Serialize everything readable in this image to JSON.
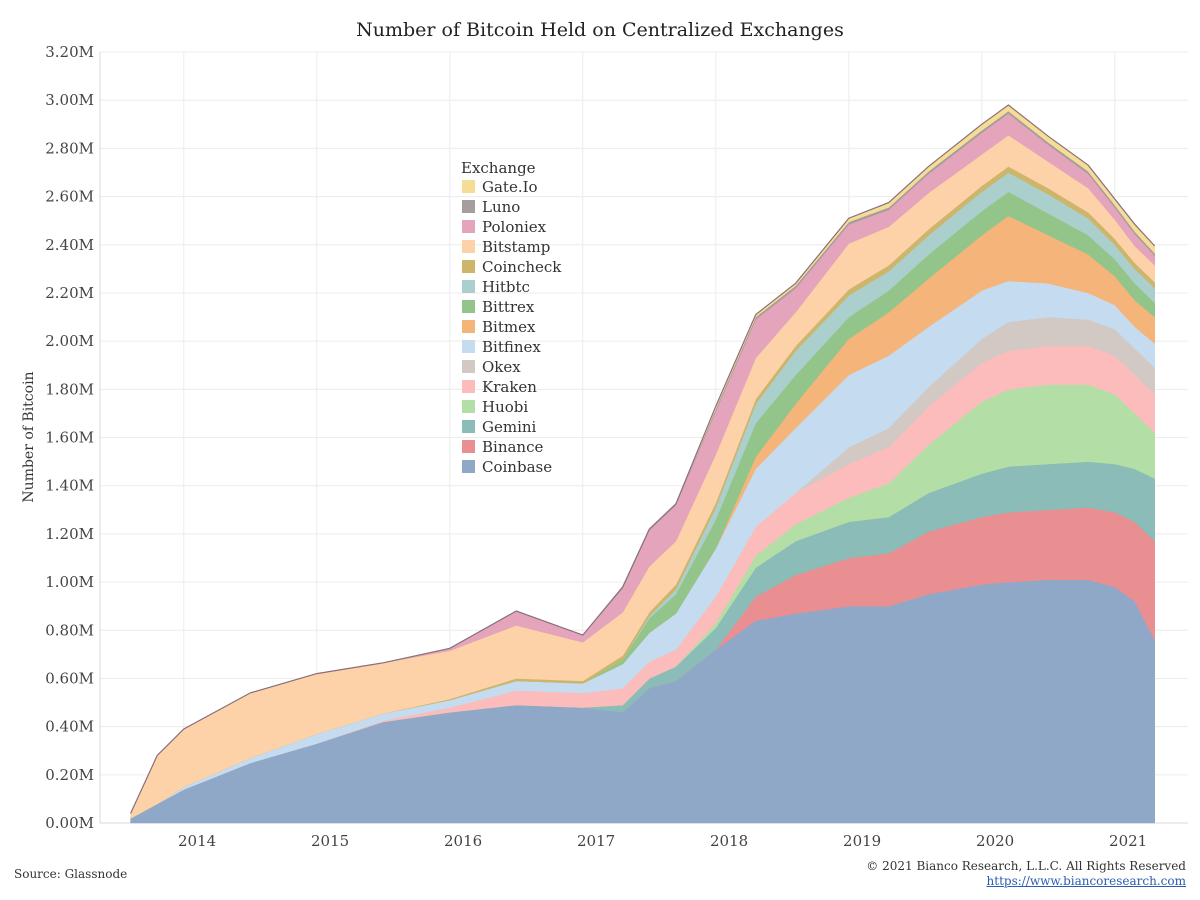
{
  "chart_data": {
    "type": "area",
    "stacked": true,
    "title": "Number of Bitcoin Held on Centralized Exchanges",
    "ylabel": "Number of Bitcoin",
    "xlabel": "",
    "ylim": [
      0,
      3200000
    ],
    "xlim": [
      2013.37,
      2021.55
    ],
    "yticks": [
      0,
      200000,
      400000,
      600000,
      800000,
      1000000,
      1200000,
      1400000,
      1600000,
      1800000,
      2000000,
      2200000,
      2400000,
      2600000,
      2800000,
      3000000,
      3200000
    ],
    "ytick_labels": [
      "0.00M",
      "0.20M",
      "0.40M",
      "0.60M",
      "0.80M",
      "1.00M",
      "1.20M",
      "1.40M",
      "1.60M",
      "1.80M",
      "2.00M",
      "2.20M",
      "2.40M",
      "2.60M",
      "2.80M",
      "3.00M",
      "3.20M"
    ],
    "xticks": [
      2014,
      2015,
      2016,
      2017,
      2018,
      2019,
      2020,
      2021
    ],
    "xtick_labels": [
      "2014",
      "2015",
      "2016",
      "2017",
      "2018",
      "2019",
      "2020",
      "2021"
    ],
    "grid": true,
    "legend_title": "Exchange",
    "legend_placement": "upper-left-center",
    "x": [
      2013.6,
      2013.8,
      2014.0,
      2014.5,
      2015.0,
      2015.5,
      2016.0,
      2016.5,
      2017.0,
      2017.3,
      2017.5,
      2017.7,
      2018.0,
      2018.3,
      2018.6,
      2019.0,
      2019.3,
      2019.6,
      2020.0,
      2020.2,
      2020.5,
      2020.8,
      2021.0,
      2021.15,
      2021.3
    ],
    "series": [
      {
        "name": "Coinbase",
        "color": "#8fa8c8",
        "values": [
          20000,
          80000,
          140000,
          250000,
          330000,
          420000,
          460000,
          490000,
          480000,
          460000,
          560000,
          590000,
          720000,
          840000,
          870000,
          900000,
          900000,
          950000,
          990000,
          1000000,
          1010000,
          1010000,
          980000,
          920000,
          760000
        ]
      },
      {
        "name": "Binance",
        "color": "#e98f92",
        "values": [
          0,
          0,
          0,
          0,
          0,
          0,
          0,
          0,
          0,
          0,
          0,
          0,
          0,
          100000,
          160000,
          200000,
          220000,
          260000,
          280000,
          290000,
          290000,
          300000,
          310000,
          330000,
          410000
        ]
      },
      {
        "name": "Gemini",
        "color": "#8bbcb8",
        "values": [
          0,
          0,
          0,
          0,
          0,
          0,
          0,
          0,
          0,
          30000,
          40000,
          60000,
          90000,
          120000,
          140000,
          150000,
          150000,
          160000,
          180000,
          190000,
          190000,
          190000,
          200000,
          220000,
          260000
        ]
      },
      {
        "name": "Huobi",
        "color": "#b3dea5",
        "values": [
          0,
          0,
          0,
          0,
          0,
          0,
          0,
          0,
          0,
          0,
          0,
          0,
          20000,
          50000,
          70000,
          100000,
          140000,
          200000,
          300000,
          320000,
          330000,
          320000,
          290000,
          230000,
          190000
        ]
      },
      {
        "name": "Kraken",
        "color": "#fcbcbb",
        "values": [
          0,
          0,
          0,
          0,
          0,
          5000,
          20000,
          60000,
          60000,
          70000,
          70000,
          70000,
          110000,
          120000,
          130000,
          140000,
          150000,
          160000,
          160000,
          160000,
          160000,
          160000,
          160000,
          160000,
          160000
        ]
      },
      {
        "name": "Okex",
        "color": "#d2c8c4",
        "values": [
          0,
          0,
          0,
          0,
          0,
          0,
          0,
          0,
          0,
          0,
          0,
          0,
          0,
          0,
          0,
          70000,
          80000,
          80000,
          100000,
          120000,
          120000,
          110000,
          110000,
          110000,
          110000
        ]
      },
      {
        "name": "Bitfinex",
        "color": "#c5dcf0",
        "values": [
          0,
          0,
          10000,
          20000,
          40000,
          30000,
          30000,
          40000,
          40000,
          100000,
          120000,
          150000,
          200000,
          240000,
          270000,
          300000,
          300000,
          250000,
          200000,
          170000,
          140000,
          110000,
          100000,
          90000,
          100000
        ]
      },
      {
        "name": "Bitmex",
        "color": "#f4b47a",
        "values": [
          0,
          0,
          0,
          0,
          0,
          0,
          0,
          0,
          0,
          0,
          0,
          0,
          0,
          50000,
          100000,
          150000,
          180000,
          200000,
          230000,
          270000,
          200000,
          160000,
          120000,
          110000,
          110000
        ]
      },
      {
        "name": "Bittrex",
        "color": "#93c58b",
        "values": [
          0,
          0,
          0,
          0,
          0,
          0,
          0,
          0,
          0,
          20000,
          60000,
          80000,
          120000,
          140000,
          120000,
          90000,
          90000,
          100000,
          100000,
          100000,
          90000,
          80000,
          70000,
          70000,
          60000
        ]
      },
      {
        "name": "Hitbtc",
        "color": "#aacfcc",
        "values": [
          0,
          0,
          0,
          0,
          0,
          0,
          0,
          0,
          0,
          0,
          10000,
          20000,
          50000,
          80000,
          100000,
          90000,
          80000,
          80000,
          80000,
          80000,
          80000,
          70000,
          60000,
          60000,
          60000
        ]
      },
      {
        "name": "Coincheck",
        "color": "#cdb56b",
        "values": [
          0,
          0,
          0,
          0,
          0,
          0,
          5000,
          10000,
          10000,
          15000,
          15000,
          20000,
          20000,
          20000,
          20000,
          25000,
          25000,
          25000,
          25000,
          25000,
          25000,
          25000,
          25000,
          25000,
          25000
        ]
      },
      {
        "name": "Bitstamp",
        "color": "#fdd2a8",
        "values": [
          20000,
          200000,
          240000,
          270000,
          250000,
          210000,
          200000,
          220000,
          160000,
          180000,
          190000,
          180000,
          200000,
          170000,
          140000,
          190000,
          160000,
          150000,
          130000,
          130000,
          110000,
          100000,
          80000,
          70000,
          70000
        ]
      },
      {
        "name": "Poloniex",
        "color": "#e4a5bc",
        "values": [
          0,
          0,
          0,
          0,
          0,
          0,
          10000,
          60000,
          30000,
          100000,
          150000,
          150000,
          180000,
          160000,
          100000,
          80000,
          70000,
          80000,
          90000,
          90000,
          70000,
          60000,
          50000,
          50000,
          40000
        ]
      },
      {
        "name": "Luno",
        "color": "#a69d9d",
        "values": [
          0,
          0,
          0,
          0,
          0,
          0,
          0,
          0,
          0,
          5000,
          5000,
          5000,
          10000,
          10000,
          10000,
          10000,
          10000,
          10000,
          10000,
          10000,
          10000,
          10000,
          10000,
          10000,
          10000
        ]
      },
      {
        "name": "Gate.Io",
        "color": "#f6dd95",
        "values": [
          0,
          0,
          0,
          0,
          0,
          0,
          0,
          0,
          0,
          0,
          0,
          0,
          10000,
          10000,
          10000,
          15000,
          20000,
          20000,
          25000,
          25000,
          25000,
          25000,
          25000,
          30000,
          30000
        ]
      }
    ]
  },
  "footer": {
    "source": "Source: Glassnode",
    "copyright": "© 2021 Bianco Research, L.L.C. All Rights Reserved",
    "url": "https://www.biancoresearch.com"
  }
}
